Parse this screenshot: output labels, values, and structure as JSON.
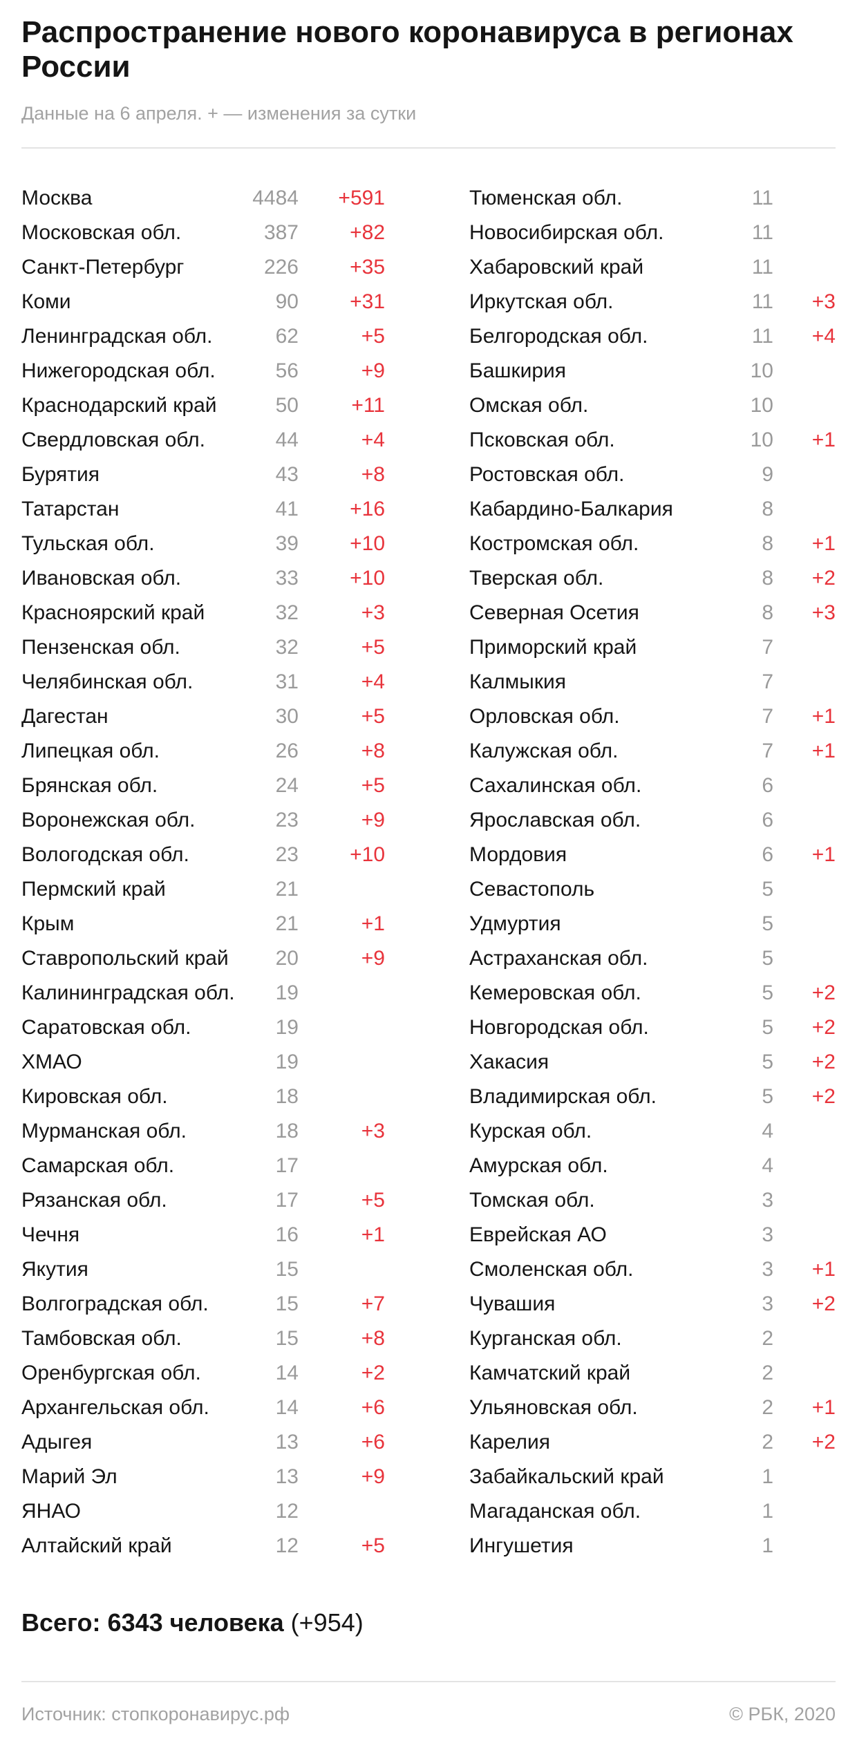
{
  "title": "Распространение нового коронавируса в регионах России",
  "subtitle": "Данные на 6 апреля. + — изменения за сутки",
  "total": {
    "label": "Всего: 6343 человека",
    "change": "(+954)"
  },
  "footer": {
    "source": "Источник: стопкоронавирус.рф",
    "copyright": "© РБК, 2020"
  },
  "colors": {
    "change": "#e8333b",
    "count": "#9a9a9a",
    "text": "#151515",
    "muted": "#a2a2a2"
  },
  "chart_data": {
    "type": "table",
    "title": "Распространение нового коронавируса в регионах России",
    "columns": [
      "region",
      "cases",
      "change"
    ],
    "rows": [
      {
        "region": "Москва",
        "cases": 4484,
        "change": "+591"
      },
      {
        "region": "Московская обл.",
        "cases": 387,
        "change": "+82"
      },
      {
        "region": "Санкт-Петербург",
        "cases": 226,
        "change": "+35"
      },
      {
        "region": "Коми",
        "cases": 90,
        "change": "+31"
      },
      {
        "region": "Ленинградская обл.",
        "cases": 62,
        "change": "+5"
      },
      {
        "region": "Нижегородская обл.",
        "cases": 56,
        "change": "+9"
      },
      {
        "region": "Краснодарский край",
        "cases": 50,
        "change": "+11"
      },
      {
        "region": "Свердловская обл.",
        "cases": 44,
        "change": "+4"
      },
      {
        "region": "Бурятия",
        "cases": 43,
        "change": "+8"
      },
      {
        "region": "Татарстан",
        "cases": 41,
        "change": "+16"
      },
      {
        "region": "Тульская обл.",
        "cases": 39,
        "change": "+10"
      },
      {
        "region": "Ивановская обл.",
        "cases": 33,
        "change": "+10"
      },
      {
        "region": "Красноярский край",
        "cases": 32,
        "change": "+3"
      },
      {
        "region": "Пензенская обл.",
        "cases": 32,
        "change": "+5"
      },
      {
        "region": "Челябинская обл.",
        "cases": 31,
        "change": "+4"
      },
      {
        "region": "Дагестан",
        "cases": 30,
        "change": "+5"
      },
      {
        "region": "Липецкая обл.",
        "cases": 26,
        "change": "+8"
      },
      {
        "region": "Брянская обл.",
        "cases": 24,
        "change": "+5"
      },
      {
        "region": "Воронежская обл.",
        "cases": 23,
        "change": "+9"
      },
      {
        "region": "Вологодская обл.",
        "cases": 23,
        "change": "+10"
      },
      {
        "region": "Пермский край",
        "cases": 21,
        "change": ""
      },
      {
        "region": "Крым",
        "cases": 21,
        "change": "+1"
      },
      {
        "region": "Ставропольский край",
        "cases": 20,
        "change": "+9"
      },
      {
        "region": "Калининградская обл.",
        "cases": 19,
        "change": ""
      },
      {
        "region": "Саратовская обл.",
        "cases": 19,
        "change": ""
      },
      {
        "region": "ХМАО",
        "cases": 19,
        "change": ""
      },
      {
        "region": "Кировская обл.",
        "cases": 18,
        "change": ""
      },
      {
        "region": "Мурманская обл.",
        "cases": 18,
        "change": "+3"
      },
      {
        "region": "Самарская обл.",
        "cases": 17,
        "change": ""
      },
      {
        "region": "Рязанская обл.",
        "cases": 17,
        "change": "+5"
      },
      {
        "region": "Чечня",
        "cases": 16,
        "change": "+1"
      },
      {
        "region": "Якутия",
        "cases": 15,
        "change": ""
      },
      {
        "region": "Волгоградская обл.",
        "cases": 15,
        "change": "+7"
      },
      {
        "region": "Тамбовская обл.",
        "cases": 15,
        "change": "+8"
      },
      {
        "region": "Оренбургская обл.",
        "cases": 14,
        "change": "+2"
      },
      {
        "region": "Архангельская обл.",
        "cases": 14,
        "change": "+6"
      },
      {
        "region": "Адыгея",
        "cases": 13,
        "change": "+6"
      },
      {
        "region": "Марий Эл",
        "cases": 13,
        "change": "+9"
      },
      {
        "region": "ЯНАО",
        "cases": 12,
        "change": ""
      },
      {
        "region": "Алтайский край",
        "cases": 12,
        "change": "+5"
      },
      {
        "region": "Тюменская обл.",
        "cases": 11,
        "change": ""
      },
      {
        "region": "Новосибирская обл.",
        "cases": 11,
        "change": ""
      },
      {
        "region": "Хабаровский край",
        "cases": 11,
        "change": ""
      },
      {
        "region": "Иркутская обл.",
        "cases": 11,
        "change": "+3"
      },
      {
        "region": "Белгородская обл.",
        "cases": 11,
        "change": "+4"
      },
      {
        "region": "Башкирия",
        "cases": 10,
        "change": ""
      },
      {
        "region": "Омская обл.",
        "cases": 10,
        "change": ""
      },
      {
        "region": "Псковская обл.",
        "cases": 10,
        "change": "+1"
      },
      {
        "region": "Ростовская обл.",
        "cases": 9,
        "change": ""
      },
      {
        "region": "Кабардино-Балкария",
        "cases": 8,
        "change": ""
      },
      {
        "region": "Костромская обл.",
        "cases": 8,
        "change": "+1"
      },
      {
        "region": "Тверская обл.",
        "cases": 8,
        "change": "+2"
      },
      {
        "region": "Северная Осетия",
        "cases": 8,
        "change": "+3"
      },
      {
        "region": "Приморский край",
        "cases": 7,
        "change": ""
      },
      {
        "region": "Калмыкия",
        "cases": 7,
        "change": ""
      },
      {
        "region": "Орловская обл.",
        "cases": 7,
        "change": "+1"
      },
      {
        "region": "Калужская обл.",
        "cases": 7,
        "change": "+1"
      },
      {
        "region": "Сахалинская обл.",
        "cases": 6,
        "change": ""
      },
      {
        "region": "Ярославская обл.",
        "cases": 6,
        "change": ""
      },
      {
        "region": "Мордовия",
        "cases": 6,
        "change": "+1"
      },
      {
        "region": "Севастополь",
        "cases": 5,
        "change": ""
      },
      {
        "region": "Удмуртия",
        "cases": 5,
        "change": ""
      },
      {
        "region": "Астраханская обл.",
        "cases": 5,
        "change": ""
      },
      {
        "region": "Кемеровская обл.",
        "cases": 5,
        "change": "+2"
      },
      {
        "region": "Новгородская обл.",
        "cases": 5,
        "change": "+2"
      },
      {
        "region": "Хакасия",
        "cases": 5,
        "change": "+2"
      },
      {
        "region": "Владимирская обл.",
        "cases": 5,
        "change": "+2"
      },
      {
        "region": "Курская обл.",
        "cases": 4,
        "change": ""
      },
      {
        "region": "Амурская обл.",
        "cases": 4,
        "change": ""
      },
      {
        "region": "Томская обл.",
        "cases": 3,
        "change": ""
      },
      {
        "region": "Еврейская АО",
        "cases": 3,
        "change": ""
      },
      {
        "region": "Смоленская обл.",
        "cases": 3,
        "change": "+1"
      },
      {
        "region": "Чувашия",
        "cases": 3,
        "change": "+2"
      },
      {
        "region": "Курганская обл.",
        "cases": 2,
        "change": ""
      },
      {
        "region": "Камчатский край",
        "cases": 2,
        "change": ""
      },
      {
        "region": "Ульяновская обл.",
        "cases": 2,
        "change": "+1"
      },
      {
        "region": "Карелия",
        "cases": 2,
        "change": "+2"
      },
      {
        "region": "Забайкальский край",
        "cases": 1,
        "change": ""
      },
      {
        "region": "Магаданская обл.",
        "cases": 1,
        "change": ""
      },
      {
        "region": "Ингушетия",
        "cases": 1,
        "change": ""
      }
    ]
  }
}
